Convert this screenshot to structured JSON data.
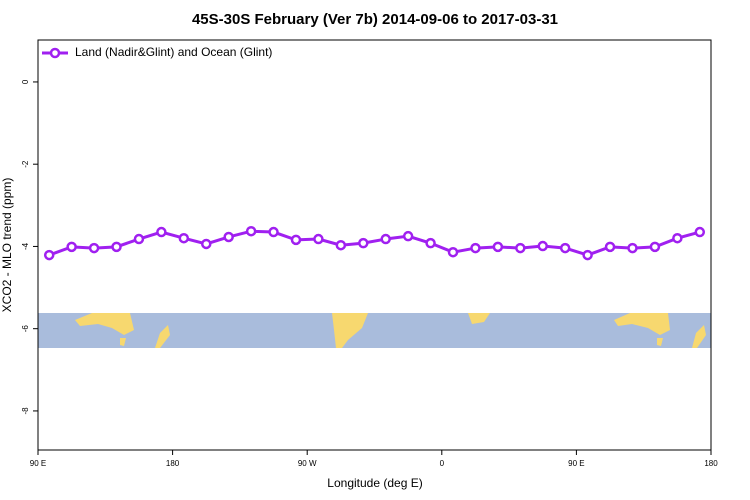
{
  "chart_data": {
    "type": "line",
    "title": "45S-30S February (Ver 7b)   2014-09-06 to 2017-03-31",
    "xlabel": "Longitude (deg E)",
    "ylabel": "XCO2 - MLO trend (ppm)",
    "x": [
      97.5,
      112.5,
      127.5,
      142.5,
      157.5,
      172.5,
      187.5,
      202.5,
      217.5,
      232.5,
      247.5,
      262.5,
      277.5,
      292.5,
      307.5,
      322.5,
      337.5,
      352.5,
      367.5,
      382.5,
      397.5,
      412.5,
      427.5,
      442.5,
      457.5,
      472.5,
      487.5,
      502.5,
      517.5,
      532.5
    ],
    "series": [
      {
        "name": "Land (Nadir&Glint) and Ocean (Glint)",
        "color": "#a020f0",
        "values": [
          -4.21,
          -4.01,
          -4.04,
          -4.01,
          -3.82,
          -3.65,
          -3.8,
          -3.94,
          -3.77,
          -3.63,
          -3.65,
          -3.84,
          -3.82,
          -3.97,
          -3.92,
          -3.82,
          -3.75,
          -3.92,
          -4.14,
          -4.04,
          -4.01,
          -4.04,
          -3.99,
          -4.04,
          -4.21,
          -4.01,
          -4.04,
          -4.01,
          -3.8,
          -3.65
        ]
      }
    ],
    "xlim": [
      90,
      540
    ],
    "xticks": [
      {
        "value": 90,
        "label": "90 E"
      },
      {
        "value": 180,
        "label": "180"
      },
      {
        "value": 270,
        "label": "90 W"
      },
      {
        "value": 360,
        "label": "0"
      },
      {
        "value": 450,
        "label": "90 E"
      },
      {
        "value": 540,
        "label": "180"
      }
    ],
    "ylim": [
      -8.95,
      1.02
    ],
    "yticks": [
      0,
      -2,
      -4,
      -6,
      -8
    ],
    "legend": "top-left"
  }
}
